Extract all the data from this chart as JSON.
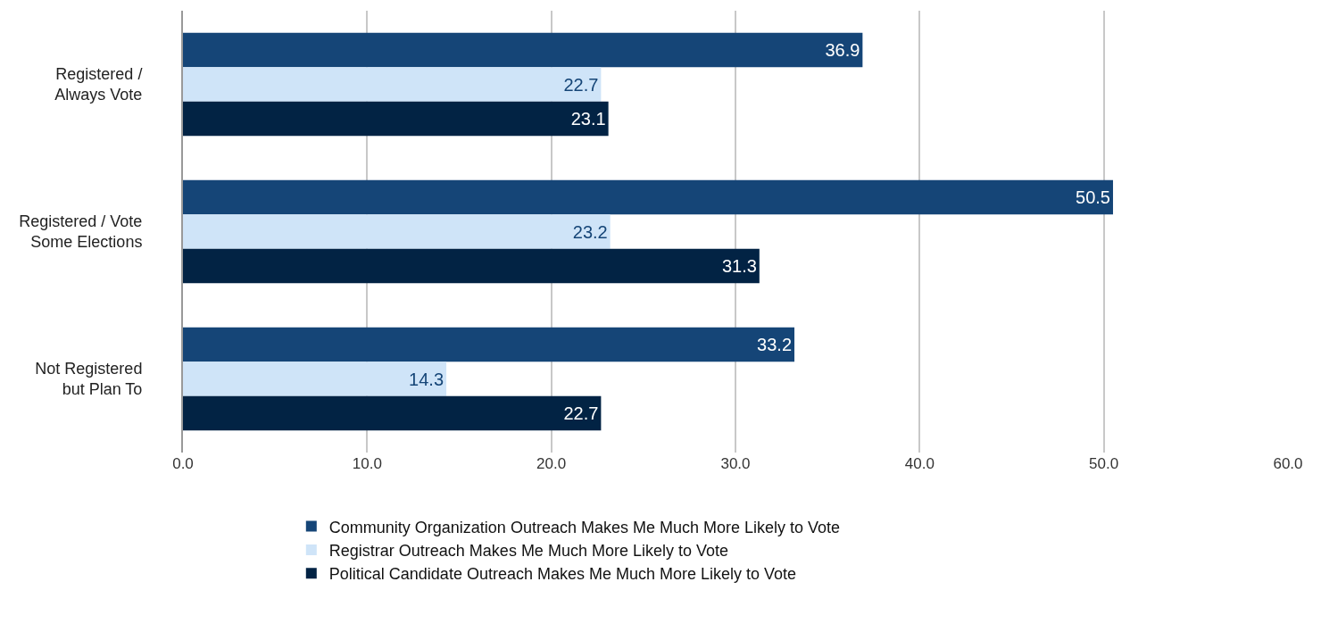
{
  "chart_data": {
    "type": "bar",
    "orientation": "horizontal",
    "categories": [
      "Registered /\nAlways Vote",
      "Registered / Vote\nSome Elections",
      "Not Registered\nbut Plan To"
    ],
    "series": [
      {
        "name": "Community Organization Outreach Makes Me Much More Likely to Vote",
        "color": "#154577",
        "values": [
          36.9,
          50.5,
          33.2
        ]
      },
      {
        "name": "Registrar Outreach Makes Me Much More Likely to Vote",
        "color": "#cfe4f8",
        "values": [
          22.7,
          23.2,
          14.3
        ]
      },
      {
        "name": "Political Candidate Outreach Makes Me Much More Likely to Vote",
        "color": "#022344",
        "values": [
          23.1,
          31.3,
          22.7
        ]
      }
    ],
    "xlim": [
      0,
      60
    ],
    "xticks": [
      {
        "value": 0,
        "label": "0.0"
      },
      {
        "value": 10,
        "label": "10.0"
      },
      {
        "value": 20,
        "label": "20.0"
      },
      {
        "value": 30,
        "label": "30.0"
      },
      {
        "value": 40,
        "label": "40.0"
      },
      {
        "value": 50,
        "label": "50.0"
      },
      {
        "value": 60,
        "label": "60.0"
      }
    ],
    "grid": "x",
    "legend": "bottom",
    "data_labels": true
  }
}
